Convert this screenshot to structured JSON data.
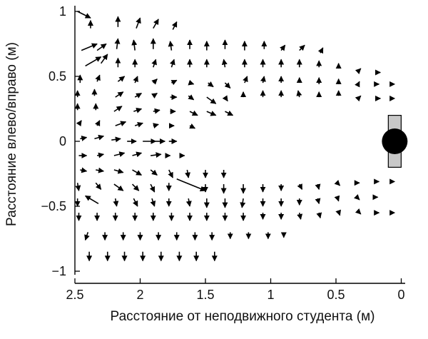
{
  "chart_data": {
    "type": "quiver",
    "title": "",
    "xlabel": "Расстояние от неподвижного студента (м)",
    "ylabel": "Расстояние влево/вправо (м)",
    "xlim": [
      2.5,
      0
    ],
    "ylim": [
      -1.05,
      1.05
    ],
    "x_reversed": true,
    "xticks": [
      2.5,
      2,
      1.5,
      1,
      0.5,
      0
    ],
    "xtick_labels": [
      "2.5",
      "2",
      "1.5",
      "1",
      "0.5",
      "0"
    ],
    "yticks": [
      1,
      0.5,
      0,
      -0.5,
      -1
    ],
    "ytick_labels": [
      "1",
      "0.5",
      "0",
      "−0.5",
      "−1"
    ],
    "grid": false,
    "arrow_color": "#000000",
    "stationary_student": {
      "x": 0.05,
      "y": 0,
      "body_color": "#000000",
      "bar_color": "#c8c8c8",
      "bar_half_length": 0.2
    },
    "vectors": [
      [
        2.48,
        1.0,
        0.1,
        -0.05
      ],
      [
        2.38,
        0.87,
        0.0,
        0.06
      ],
      [
        2.17,
        0.88,
        0.0,
        0.08
      ],
      [
        2.03,
        0.87,
        0.03,
        0.08
      ],
      [
        1.9,
        0.87,
        0.04,
        0.07
      ],
      [
        1.75,
        0.86,
        0.03,
        0.06
      ],
      [
        2.45,
        0.7,
        0.12,
        0.05
      ],
      [
        2.33,
        0.7,
        0.07,
        0.05
      ],
      [
        2.18,
        0.71,
        0.01,
        0.08
      ],
      [
        2.04,
        0.7,
        -0.01,
        0.08
      ],
      [
        1.9,
        0.71,
        0.0,
        0.08
      ],
      [
        1.76,
        0.7,
        -0.01,
        0.07
      ],
      [
        1.62,
        0.71,
        0.0,
        0.07
      ],
      [
        1.49,
        0.7,
        0.0,
        0.07
      ],
      [
        1.35,
        0.71,
        0.0,
        0.07
      ],
      [
        1.2,
        0.7,
        0.0,
        0.07
      ],
      [
        1.05,
        0.71,
        0.0,
        0.06
      ],
      [
        0.92,
        0.7,
        0.03,
        0.04
      ],
      [
        0.78,
        0.7,
        0.04,
        0.04
      ],
      [
        0.62,
        0.68,
        0.02,
        0.04
      ],
      [
        2.42,
        0.58,
        0.12,
        0.07
      ],
      [
        2.3,
        0.6,
        0.05,
        0.07
      ],
      [
        2.17,
        0.57,
        0.0,
        0.07
      ],
      [
        2.04,
        0.57,
        0.0,
        0.06
      ],
      [
        1.9,
        0.57,
        0.02,
        0.06
      ],
      [
        1.76,
        0.57,
        0.02,
        0.06
      ],
      [
        1.62,
        0.57,
        0.0,
        0.06
      ],
      [
        1.49,
        0.57,
        0.0,
        0.06
      ],
      [
        1.35,
        0.57,
        -0.01,
        0.06
      ],
      [
        1.2,
        0.57,
        0.0,
        0.06
      ],
      [
        1.06,
        0.57,
        0.0,
        0.06
      ],
      [
        0.92,
        0.57,
        0.0,
        0.06
      ],
      [
        0.78,
        0.57,
        0.0,
        0.06
      ],
      [
        0.63,
        0.57,
        0.0,
        0.05
      ],
      [
        0.48,
        0.56,
        0.0,
        0.04
      ],
      [
        0.33,
        0.54,
        0.02,
        0.02
      ],
      [
        0.18,
        0.53,
        0.02,
        0.0
      ],
      [
        2.46,
        0.45,
        0.0,
        0.06
      ],
      [
        2.33,
        0.46,
        0.02,
        0.05
      ],
      [
        2.17,
        0.46,
        0.05,
        0.04
      ],
      [
        2.04,
        0.45,
        0.02,
        0.05
      ],
      [
        1.9,
        0.45,
        0.03,
        0.03
      ],
      [
        1.76,
        0.45,
        0.04,
        0.02
      ],
      [
        1.62,
        0.45,
        0.03,
        -0.01
      ],
      [
        1.48,
        0.45,
        0.04,
        -0.03
      ],
      [
        1.35,
        0.45,
        0.04,
        -0.04
      ],
      [
        1.2,
        0.45,
        0.02,
        0.05
      ],
      [
        1.06,
        0.45,
        0.01,
        0.05
      ],
      [
        0.92,
        0.45,
        0.0,
        0.05
      ],
      [
        0.78,
        0.45,
        0.0,
        0.04
      ],
      [
        0.63,
        0.44,
        0.0,
        0.05
      ],
      [
        0.48,
        0.44,
        0.0,
        0.04
      ],
      [
        0.33,
        0.44,
        0.01,
        0.02
      ],
      [
        0.18,
        0.44,
        0.01,
        0.0
      ],
      [
        0.05,
        0.44,
        0.0,
        0.0
      ],
      [
        2.48,
        0.34,
        0.0,
        0.05
      ],
      [
        2.35,
        0.35,
        0.0,
        0.05
      ],
      [
        2.19,
        0.34,
        0.06,
        0.04
      ],
      [
        2.04,
        0.34,
        0.05,
        0.03
      ],
      [
        1.9,
        0.35,
        0.03,
        0.02
      ],
      [
        1.77,
        0.34,
        0.05,
        0.0
      ],
      [
        1.63,
        0.35,
        0.04,
        -0.03
      ],
      [
        1.49,
        0.34,
        0.07,
        -0.05
      ],
      [
        1.35,
        0.34,
        0.02,
        -0.03
      ],
      [
        1.21,
        0.34,
        0.0,
        0.04
      ],
      [
        1.06,
        0.34,
        0.0,
        0.05
      ],
      [
        0.92,
        0.34,
        0.0,
        0.05
      ],
      [
        0.78,
        0.34,
        -0.01,
        0.05
      ],
      [
        0.63,
        0.34,
        0.0,
        0.04
      ],
      [
        0.48,
        0.35,
        0.0,
        0.04
      ],
      [
        0.33,
        0.33,
        0.02,
        0.02
      ],
      [
        0.18,
        0.33,
        0.02,
        0.0
      ],
      [
        0.05,
        0.33,
        0.0,
        0.0
      ],
      [
        2.48,
        0.24,
        0.0,
        0.05
      ],
      [
        2.34,
        0.24,
        0.0,
        0.05
      ],
      [
        2.2,
        0.23,
        0.06,
        0.04
      ],
      [
        2.05,
        0.23,
        0.06,
        0.02
      ],
      [
        1.9,
        0.23,
        0.05,
        0.01
      ],
      [
        1.77,
        0.23,
        0.04,
        0.0
      ],
      [
        1.62,
        0.23,
        0.06,
        -0.03
      ],
      [
        1.49,
        0.23,
        0.07,
        -0.03
      ],
      [
        1.35,
        0.23,
        0.06,
        -0.03
      ],
      [
        2.47,
        0.13,
        0.02,
        0.03
      ],
      [
        2.33,
        0.12,
        0.02,
        0.04
      ],
      [
        2.19,
        0.12,
        0.08,
        0.03
      ],
      [
        2.04,
        0.12,
        0.06,
        0.02
      ],
      [
        1.9,
        0.12,
        0.04,
        0.01
      ],
      [
        1.77,
        0.12,
        0.03,
        0.0
      ],
      [
        1.62,
        0.12,
        0.04,
        -0.02
      ],
      [
        2.46,
        0.02,
        0.05,
        0.01
      ],
      [
        2.35,
        0.02,
        0.07,
        0.02
      ],
      [
        2.22,
        0.01,
        0.07,
        0.01
      ],
      [
        2.1,
        0.0,
        0.07,
        0.0
      ],
      [
        1.98,
        0.0,
        0.1,
        0.0
      ],
      [
        1.88,
        0.0,
        0.07,
        0.0
      ],
      [
        1.78,
        0.0,
        0.06,
        0.0
      ],
      [
        2.47,
        -0.11,
        0.06,
        0.0
      ],
      [
        2.33,
        -0.11,
        0.05,
        0.01
      ],
      [
        2.2,
        -0.11,
        0.08,
        0.02
      ],
      [
        2.06,
        -0.11,
        0.07,
        0.02
      ],
      [
        1.92,
        -0.11,
        0.08,
        0.01
      ],
      [
        1.8,
        -0.11,
        0.03,
        0.0
      ],
      [
        1.68,
        -0.11,
        0.02,
        0.0
      ],
      [
        2.46,
        -0.22,
        0.05,
        -0.01
      ],
      [
        2.34,
        -0.22,
        0.06,
        -0.01
      ],
      [
        2.2,
        -0.22,
        0.07,
        -0.02
      ],
      [
        2.06,
        -0.22,
        0.07,
        -0.04
      ],
      [
        1.92,
        -0.22,
        0.05,
        -0.04
      ],
      [
        1.78,
        -0.22,
        0.03,
        -0.06
      ],
      [
        1.64,
        -0.22,
        0.01,
        -0.06
      ],
      [
        1.5,
        -0.22,
        0.0,
        -0.06
      ],
      [
        1.36,
        -0.22,
        0.0,
        -0.06
      ],
      [
        2.48,
        -0.32,
        0.01,
        -0.06
      ],
      [
        2.34,
        -0.32,
        0.04,
        -0.05
      ],
      [
        2.2,
        -0.33,
        0.07,
        -0.05
      ],
      [
        2.06,
        -0.33,
        0.05,
        -0.05
      ],
      [
        1.92,
        -0.33,
        0.03,
        -0.06
      ],
      [
        1.78,
        -0.32,
        0.0,
        -0.06
      ],
      [
        1.72,
        -0.29,
        0.22,
        -0.09
      ],
      [
        1.5,
        -0.33,
        0.0,
        -0.06
      ],
      [
        1.36,
        -0.33,
        0.0,
        -0.07
      ],
      [
        1.21,
        -0.33,
        0.0,
        -0.07
      ],
      [
        1.06,
        -0.33,
        0.0,
        -0.06
      ],
      [
        0.92,
        -0.33,
        0.0,
        -0.05
      ],
      [
        0.78,
        -0.33,
        0.02,
        -0.04
      ],
      [
        0.64,
        -0.33,
        0.01,
        -0.04
      ],
      [
        0.49,
        -0.32,
        0.02,
        -0.02
      ],
      [
        0.34,
        -0.32,
        0.02,
        0.0
      ],
      [
        0.19,
        -0.31,
        0.02,
        0.0
      ],
      [
        0.05,
        -0.31,
        0.0,
        0.0
      ],
      [
        2.48,
        -0.44,
        0.0,
        -0.06
      ],
      [
        2.32,
        -0.48,
        -0.1,
        0.06
      ],
      [
        2.19,
        -0.44,
        0.01,
        -0.06
      ],
      [
        2.05,
        -0.44,
        0.03,
        -0.06
      ],
      [
        1.91,
        -0.44,
        0.02,
        -0.06
      ],
      [
        1.78,
        -0.44,
        0.0,
        -0.06
      ],
      [
        1.63,
        -0.44,
        0.01,
        -0.06
      ],
      [
        1.49,
        -0.44,
        0.0,
        -0.07
      ],
      [
        1.35,
        -0.44,
        0.0,
        -0.07
      ],
      [
        1.21,
        -0.44,
        -0.01,
        -0.07
      ],
      [
        1.06,
        -0.44,
        0.0,
        -0.06
      ],
      [
        0.92,
        -0.44,
        0.0,
        -0.06
      ],
      [
        0.78,
        -0.44,
        0.0,
        -0.05
      ],
      [
        0.64,
        -0.44,
        0.01,
        -0.04
      ],
      [
        0.49,
        -0.43,
        0.01,
        -0.03
      ],
      [
        0.34,
        -0.43,
        0.02,
        -0.02
      ],
      [
        0.2,
        -0.43,
        0.02,
        0.0
      ],
      [
        2.47,
        -0.55,
        0.0,
        -0.06
      ],
      [
        2.33,
        -0.55,
        0.0,
        -0.06
      ],
      [
        2.19,
        -0.55,
        0.0,
        -0.06
      ],
      [
        2.04,
        -0.55,
        0.0,
        -0.06
      ],
      [
        1.9,
        -0.55,
        0.0,
        -0.06
      ],
      [
        1.76,
        -0.55,
        0.0,
        -0.06
      ],
      [
        1.62,
        -0.55,
        0.0,
        -0.06
      ],
      [
        1.49,
        -0.55,
        0.0,
        -0.06
      ],
      [
        1.35,
        -0.55,
        0.0,
        -0.06
      ],
      [
        1.21,
        -0.55,
        0.0,
        -0.06
      ],
      [
        1.06,
        -0.55,
        0.0,
        -0.05
      ],
      [
        0.92,
        -0.55,
        0.0,
        -0.05
      ],
      [
        0.78,
        -0.55,
        0.01,
        -0.05
      ],
      [
        0.63,
        -0.55,
        0.01,
        -0.04
      ],
      [
        0.48,
        -0.54,
        0.01,
        -0.03
      ],
      [
        0.33,
        -0.54,
        0.02,
        -0.02
      ],
      [
        0.18,
        -0.55,
        0.01,
        0.0
      ],
      [
        0.05,
        -0.55,
        0.0,
        0.0
      ],
      [
        2.4,
        -0.7,
        -0.02,
        -0.06
      ],
      [
        2.27,
        -0.7,
        0.0,
        -0.06
      ],
      [
        2.13,
        -0.7,
        0.0,
        -0.06
      ],
      [
        2.0,
        -0.7,
        0.0,
        -0.06
      ],
      [
        1.86,
        -0.7,
        0.0,
        -0.06
      ],
      [
        1.72,
        -0.7,
        0.0,
        -0.06
      ],
      [
        1.58,
        -0.7,
        0.0,
        -0.06
      ],
      [
        1.45,
        -0.7,
        0.0,
        -0.06
      ],
      [
        1.31,
        -0.7,
        0.0,
        -0.05
      ],
      [
        1.17,
        -0.7,
        0.0,
        -0.05
      ],
      [
        1.02,
        -0.7,
        0.0,
        -0.05
      ],
      [
        0.9,
        -0.71,
        0.0,
        -0.03
      ],
      [
        2.39,
        -0.85,
        0.0,
        -0.07
      ],
      [
        2.25,
        -0.85,
        0.0,
        -0.07
      ],
      [
        2.12,
        -0.85,
        0.0,
        -0.07
      ],
      [
        1.98,
        -0.85,
        0.0,
        -0.07
      ],
      [
        1.84,
        -0.85,
        0.0,
        -0.07
      ],
      [
        1.7,
        -0.85,
        0.0,
        -0.07
      ],
      [
        1.57,
        -0.85,
        0.0,
        -0.07
      ],
      [
        1.43,
        -0.85,
        0.0,
        -0.07
      ]
    ]
  }
}
